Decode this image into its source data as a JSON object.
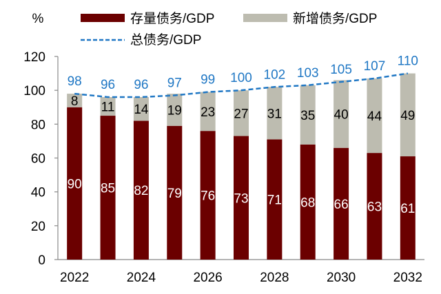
{
  "chart_data": {
    "type": "bar",
    "stacked": true,
    "title": "",
    "ylabel": "%",
    "xlabel": "",
    "ylim": [
      0,
      120
    ],
    "yticks": [
      0,
      20,
      40,
      60,
      80,
      100,
      120
    ],
    "categories": [
      "2022",
      "2023",
      "2024",
      "2025",
      "2026",
      "2027",
      "2028",
      "2029",
      "2030",
      "2031",
      "2032"
    ],
    "xtick_labels": [
      "2022",
      "",
      "2024",
      "",
      "2026",
      "",
      "2028",
      "",
      "2030",
      "",
      "2032"
    ],
    "series": [
      {
        "name": "存量债务/GDP",
        "type": "bar",
        "color": "#6b0000",
        "label_color": "#ffffff",
        "values": [
          90,
          85,
          82,
          79,
          76,
          73,
          71,
          68,
          66,
          63,
          61
        ]
      },
      {
        "name": "新增债务/GDP",
        "type": "bar",
        "color": "#bdbcb0",
        "label_color": "#000000",
        "values": [
          8,
          11,
          14,
          19,
          23,
          27,
          31,
          35,
          40,
          44,
          49
        ]
      },
      {
        "name": "总债务/GDP",
        "type": "line",
        "style": "dashed",
        "color": "#1f77c4",
        "label_color": "#1f77c4",
        "values": [
          98,
          96,
          96,
          97,
          99,
          100,
          102,
          103,
          105,
          107,
          110
        ]
      }
    ],
    "legend_position": "top",
    "grid": false
  }
}
